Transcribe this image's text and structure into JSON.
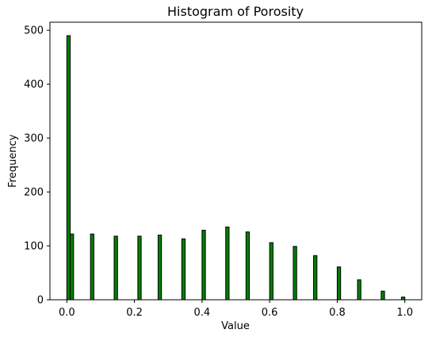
{
  "chart_data": {
    "type": "bar",
    "title": "Histogram of Porosity",
    "xlabel": "Value",
    "ylabel": "Frequency",
    "xlim": [
      -0.05,
      1.05
    ],
    "ylim": [
      0,
      515
    ],
    "xticks": [
      0.0,
      0.2,
      0.4,
      0.6,
      0.8,
      1.0
    ],
    "xtick_labels": [
      "0.0",
      "0.2",
      "0.4",
      "0.6",
      "0.8",
      "1.0"
    ],
    "yticks": [
      0,
      100,
      200,
      300,
      400,
      500
    ],
    "ytick_labels": [
      "0",
      "100",
      "200",
      "300",
      "400",
      "500"
    ],
    "bin_width": 0.01,
    "bar_color": "#008000",
    "edge_color": "#000000",
    "grid": false,
    "bins": [
      {
        "x": 0.0,
        "value": 490
      },
      {
        "x": 0.01,
        "value": 122
      },
      {
        "x": 0.07,
        "value": 122
      },
      {
        "x": 0.14,
        "value": 118
      },
      {
        "x": 0.21,
        "value": 118
      },
      {
        "x": 0.27,
        "value": 120
      },
      {
        "x": 0.34,
        "value": 113
      },
      {
        "x": 0.4,
        "value": 129
      },
      {
        "x": 0.47,
        "value": 135
      },
      {
        "x": 0.53,
        "value": 126
      },
      {
        "x": 0.6,
        "value": 106
      },
      {
        "x": 0.67,
        "value": 99
      },
      {
        "x": 0.73,
        "value": 82
      },
      {
        "x": 0.8,
        "value": 61
      },
      {
        "x": 0.86,
        "value": 37
      },
      {
        "x": 0.93,
        "value": 16
      },
      {
        "x": 0.99,
        "value": 5
      }
    ]
  }
}
